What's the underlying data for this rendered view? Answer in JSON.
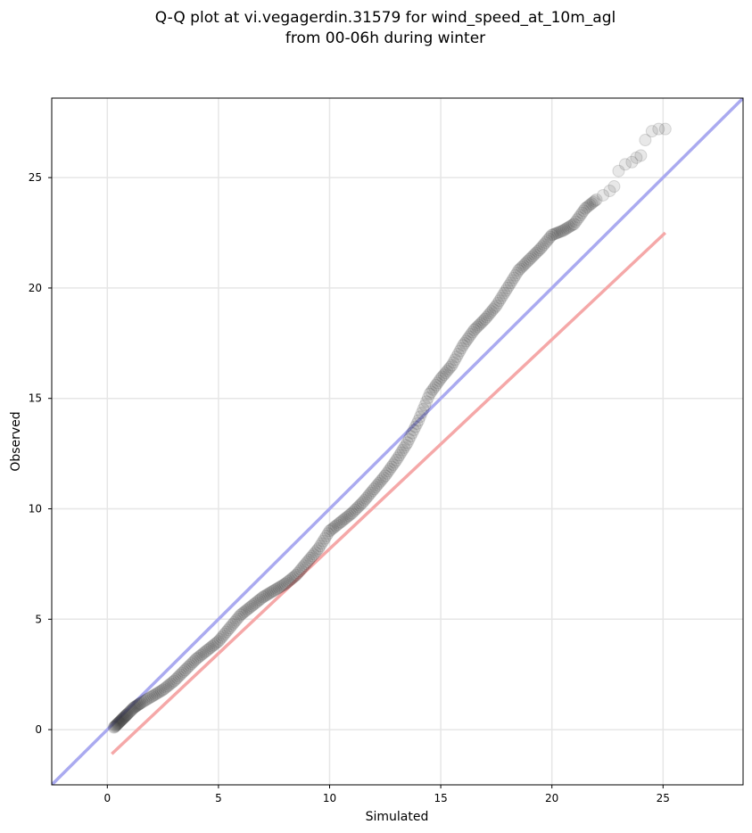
{
  "chart_data": {
    "type": "scatter",
    "title_line1": "Q-Q plot at vi.vegagerdin.31579 for wind_speed_at_10m_agl",
    "title_line2": "from 00-06h during winter",
    "xlabel": "Simulated",
    "ylabel": "Observed",
    "xlim": [
      -2.5,
      28.6
    ],
    "ylim": [
      -2.5,
      28.6
    ],
    "xticks": [
      0,
      5,
      10,
      15,
      20,
      25
    ],
    "yticks": [
      0,
      5,
      10,
      15,
      20,
      25
    ],
    "xtick_labels": [
      "0",
      "5",
      "10",
      "15",
      "20",
      "25"
    ],
    "ytick_labels": [
      "0",
      "5",
      "10",
      "15",
      "20",
      "25"
    ],
    "grid": true,
    "series": [
      {
        "kind": "quantiles",
        "color": "#000000",
        "x": [
          0.3,
          0.5,
          0.7,
          0.9,
          1.2,
          1.5,
          2.0,
          2.5,
          3.0,
          3.5,
          4.0,
          4.5,
          5.0,
          5.5,
          6.0,
          6.5,
          7.0,
          7.5,
          8.0,
          8.5,
          9.0,
          9.5,
          10.0,
          10.5,
          11.0,
          11.5,
          12.0,
          12.5,
          13.0,
          13.5,
          14.0,
          14.5,
          15.0,
          15.5,
          16.0,
          16.5,
          17.0,
          17.5,
          18.0,
          18.5,
          19.0,
          19.5,
          20.0,
          20.5,
          21.0,
          21.5,
          22.0,
          22.3,
          22.6,
          22.8,
          23.0,
          23.3,
          23.6,
          23.8,
          24.0,
          24.2,
          24.5,
          24.8,
          25.1
        ],
        "y": [
          0.1,
          0.3,
          0.5,
          0.7,
          1.0,
          1.2,
          1.5,
          1.8,
          2.2,
          2.7,
          3.2,
          3.6,
          4.0,
          4.6,
          5.2,
          5.6,
          6.0,
          6.3,
          6.6,
          7.0,
          7.6,
          8.2,
          9.0,
          9.4,
          9.8,
          10.3,
          10.9,
          11.5,
          12.2,
          13.0,
          14.0,
          15.2,
          15.9,
          16.5,
          17.4,
          18.1,
          18.6,
          19.2,
          20.0,
          20.8,
          21.3,
          21.8,
          22.4,
          22.6,
          22.9,
          23.6,
          24.0,
          24.2,
          24.4,
          24.6,
          25.3,
          25.6,
          25.7,
          25.9,
          26.0,
          26.7,
          27.1,
          27.2,
          27.2
        ]
      }
    ],
    "reference_line": {
      "from": [
        -2.5,
        -2.5
      ],
      "to": [
        28.6,
        28.6
      ],
      "color": "#aaaaf0"
    },
    "fit_line": {
      "from": [
        0.2,
        -1.1
      ],
      "to": [
        25.1,
        22.5
      ],
      "color": "#f5a8a8"
    }
  }
}
